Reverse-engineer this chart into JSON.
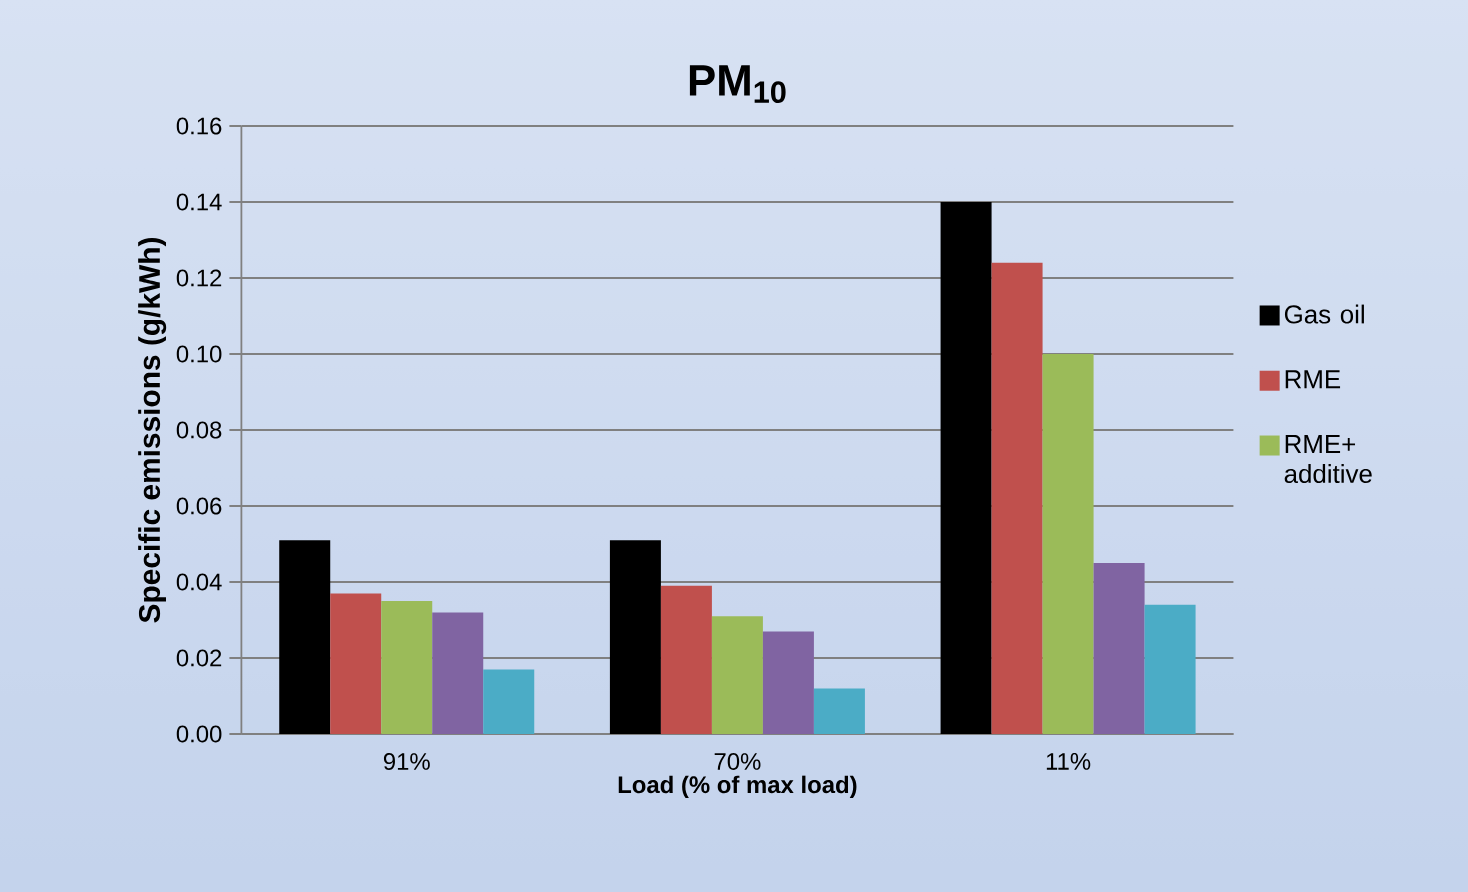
{
  "chart_data": {
    "type": "bar",
    "title": "PM$_{10}$",
    "xlabel": "Load (% of max load)",
    "ylabel": "Specific emissions  (g/kWh)",
    "categories": [
      "91%",
      "70%",
      "11%"
    ],
    "series": [
      {
        "name": "Gas oil",
        "color": "#000000",
        "values": [
          0.051,
          0.051,
          0.14
        ]
      },
      {
        "name": "RME",
        "color": "#c0504d",
        "values": [
          0.037,
          0.039,
          0.124
        ]
      },
      {
        "name": "RME+ additive",
        "color": "#9bbb59",
        "values": [
          0.035,
          0.031,
          0.1
        ]
      },
      {
        "color": "#8064a2",
        "values": [
          0.032,
          0.027,
          0.045
        ]
      },
      {
        "color": "#4bacc6",
        "values": [
          0.017,
          0.012,
          0.034
        ]
      }
    ],
    "ylim": [
      0,
      0.16
    ],
    "yticks": [
      {
        "value": 0,
        "label": "0.00"
      },
      0.02,
      0.04,
      0.06,
      0.08,
      {
        "value": 0.1,
        "label": "0.10"
      },
      0.12,
      0.14,
      0.16
    ],
    "grid": "y",
    "legend": "right"
  }
}
